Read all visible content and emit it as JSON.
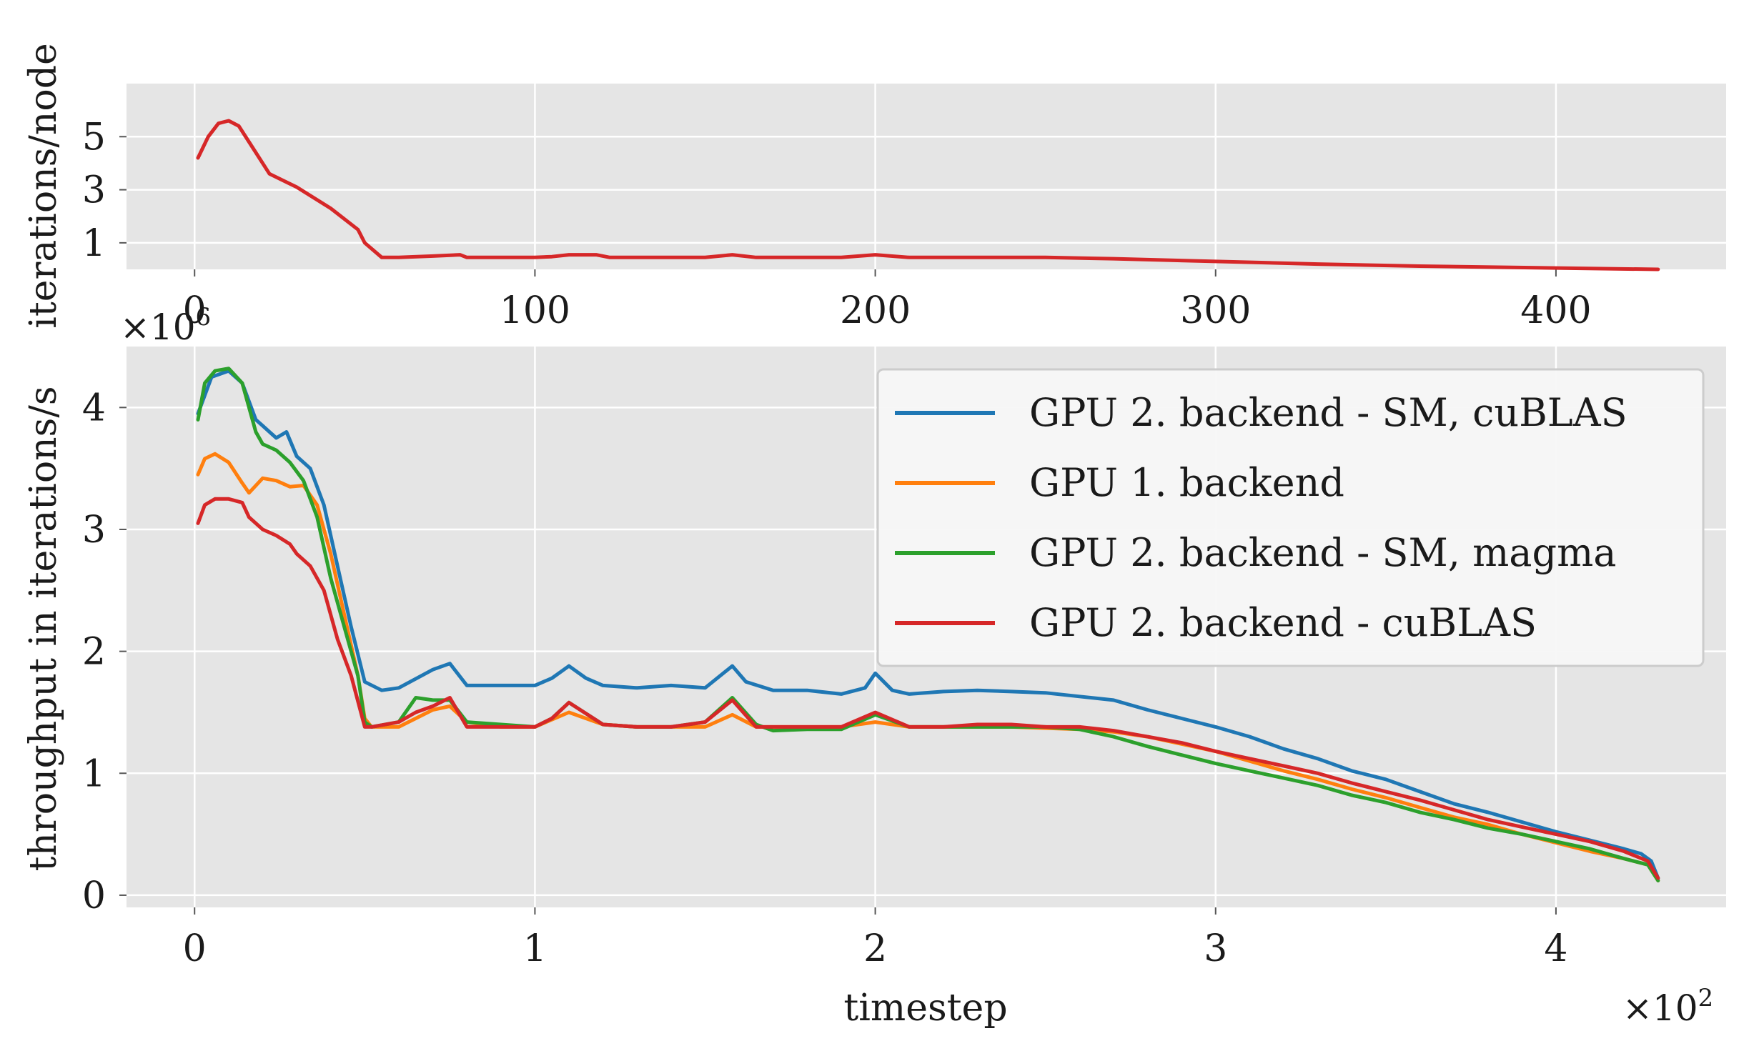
{
  "colors": {
    "background": "#e5e5e5",
    "grid": "#ffffff",
    "gpu2_sm_cublas": "#1f77b4",
    "gpu1": "#ff7f0e",
    "gpu2_sm_magma": "#2ca02c",
    "gpu2_cublas": "#d62728"
  },
  "chart_data": [
    {
      "type": "line",
      "ylabel": "iterations/node",
      "xlim": [
        -20,
        450
      ],
      "ylim": [
        0,
        7
      ],
      "xticks": [
        0,
        100,
        200,
        300,
        400
      ],
      "xtick_labels": [
        "0",
        "100",
        "200",
        "300",
        "400"
      ],
      "yticks": [
        1,
        3,
        5
      ],
      "ytick_labels": [
        "1",
        "3",
        "5"
      ],
      "grid": true,
      "series": [
        {
          "color_key": "gpu2_cublas",
          "x": [
            1,
            4,
            7,
            10,
            13,
            17,
            22,
            30,
            40,
            48,
            50,
            55,
            60,
            70,
            78,
            80,
            90,
            100,
            105,
            110,
            118,
            122,
            130,
            140,
            150,
            158,
            165,
            190,
            200,
            210,
            250,
            270,
            300,
            330,
            360,
            400,
            430
          ],
          "y": [
            4.2,
            5.0,
            5.5,
            5.6,
            5.4,
            4.6,
            3.6,
            3.1,
            2.3,
            1.5,
            1.0,
            0.45,
            0.45,
            0.5,
            0.55,
            0.45,
            0.45,
            0.45,
            0.48,
            0.55,
            0.55,
            0.45,
            0.45,
            0.45,
            0.45,
            0.55,
            0.45,
            0.45,
            0.55,
            0.45,
            0.45,
            0.4,
            0.3,
            0.2,
            0.12,
            0.05,
            0.0
          ]
        }
      ]
    },
    {
      "type": "line",
      "xlabel": "timestep",
      "ylabel": "throughput in iterations/s",
      "x_offset": "×10",
      "x_offset_exp": "2",
      "y_offset": "×10",
      "y_offset_exp": "6",
      "xlim": [
        -0.2,
        4.5
      ],
      "ylim": [
        -0.1,
        4.5
      ],
      "xticks": [
        0,
        1,
        2,
        3,
        4
      ],
      "xtick_labels": [
        "0",
        "1",
        "2",
        "3",
        "4"
      ],
      "yticks": [
        0,
        1,
        2,
        3,
        4
      ],
      "ytick_labels": [
        "0",
        "1",
        "2",
        "3",
        "4"
      ],
      "grid": true,
      "legend_position": "top-right",
      "series": [
        {
          "name": "GPU 2. backend - SM, cuBLAS",
          "color_key": "gpu2_sm_cublas",
          "x": [
            0.01,
            0.05,
            0.1,
            0.14,
            0.18,
            0.2,
            0.24,
            0.27,
            0.3,
            0.34,
            0.38,
            0.42,
            0.46,
            0.5,
            0.55,
            0.6,
            0.7,
            0.75,
            0.8,
            0.9,
            1.0,
            1.05,
            1.1,
            1.15,
            1.2,
            1.3,
            1.4,
            1.5,
            1.58,
            1.62,
            1.7,
            1.8,
            1.9,
            1.97,
            2.0,
            2.05,
            2.1,
            2.2,
            2.3,
            2.4,
            2.5,
            2.6,
            2.7,
            2.8,
            2.9,
            3.0,
            3.1,
            3.2,
            3.3,
            3.4,
            3.5,
            3.6,
            3.7,
            3.8,
            3.9,
            4.0,
            4.1,
            4.2,
            4.25,
            4.28,
            4.3
          ],
          "y": [
            3.95,
            4.25,
            4.3,
            4.2,
            3.9,
            3.85,
            3.75,
            3.8,
            3.6,
            3.5,
            3.2,
            2.7,
            2.2,
            1.75,
            1.68,
            1.7,
            1.85,
            1.9,
            1.72,
            1.72,
            1.72,
            1.78,
            1.88,
            1.78,
            1.72,
            1.7,
            1.72,
            1.7,
            1.88,
            1.75,
            1.68,
            1.68,
            1.65,
            1.7,
            1.82,
            1.68,
            1.65,
            1.67,
            1.68,
            1.67,
            1.66,
            1.63,
            1.6,
            1.52,
            1.45,
            1.38,
            1.3,
            1.2,
            1.12,
            1.02,
            0.95,
            0.85,
            0.75,
            0.68,
            0.6,
            0.52,
            0.45,
            0.38,
            0.34,
            0.28,
            0.14
          ]
        },
        {
          "name": "GPU 1. backend",
          "color_key": "gpu1",
          "x": [
            0.01,
            0.03,
            0.06,
            0.1,
            0.14,
            0.16,
            0.2,
            0.24,
            0.28,
            0.32,
            0.36,
            0.4,
            0.44,
            0.48,
            0.5,
            0.52,
            0.6,
            0.7,
            0.75,
            0.8,
            0.9,
            1.0,
            1.1,
            1.2,
            1.3,
            1.4,
            1.5,
            1.58,
            1.65,
            1.7,
            1.8,
            1.9,
            2.0,
            2.1,
            2.2,
            2.3,
            2.4,
            2.5,
            2.6,
            2.7,
            2.8,
            2.9,
            3.0,
            3.1,
            3.2,
            3.3,
            3.4,
            3.5,
            3.6,
            3.7,
            3.8,
            3.9,
            4.0,
            4.1,
            4.2,
            4.27,
            4.3
          ],
          "y": [
            3.45,
            3.58,
            3.62,
            3.55,
            3.38,
            3.3,
            3.42,
            3.4,
            3.35,
            3.36,
            3.2,
            2.8,
            2.3,
            1.8,
            1.45,
            1.38,
            1.38,
            1.52,
            1.55,
            1.42,
            1.38,
            1.38,
            1.5,
            1.4,
            1.38,
            1.38,
            1.38,
            1.48,
            1.38,
            1.38,
            1.38,
            1.38,
            1.42,
            1.38,
            1.38,
            1.38,
            1.38,
            1.37,
            1.36,
            1.34,
            1.3,
            1.24,
            1.18,
            1.1,
            1.02,
            0.95,
            0.87,
            0.8,
            0.72,
            0.64,
            0.58,
            0.5,
            0.43,
            0.36,
            0.3,
            0.25,
            0.12
          ]
        },
        {
          "name": "GPU 2. backend - SM, magma",
          "color_key": "gpu2_sm_magma",
          "x": [
            0.01,
            0.03,
            0.06,
            0.1,
            0.14,
            0.18,
            0.2,
            0.24,
            0.28,
            0.32,
            0.36,
            0.4,
            0.44,
            0.48,
            0.5,
            0.52,
            0.6,
            0.65,
            0.7,
            0.75,
            0.8,
            0.9,
            1.0,
            1.05,
            1.1,
            1.2,
            1.3,
            1.4,
            1.5,
            1.58,
            1.65,
            1.7,
            1.8,
            1.9,
            2.0,
            2.1,
            2.2,
            2.3,
            2.4,
            2.5,
            2.6,
            2.7,
            2.8,
            2.9,
            3.0,
            3.1,
            3.2,
            3.3,
            3.4,
            3.5,
            3.6,
            3.7,
            3.8,
            3.9,
            4.0,
            4.1,
            4.2,
            4.27,
            4.3
          ],
          "y": [
            3.9,
            4.2,
            4.3,
            4.32,
            4.2,
            3.8,
            3.7,
            3.65,
            3.55,
            3.4,
            3.1,
            2.6,
            2.2,
            1.8,
            1.42,
            1.38,
            1.42,
            1.62,
            1.6,
            1.6,
            1.42,
            1.4,
            1.38,
            1.45,
            1.58,
            1.4,
            1.38,
            1.38,
            1.42,
            1.62,
            1.4,
            1.35,
            1.36,
            1.36,
            1.48,
            1.38,
            1.38,
            1.38,
            1.38,
            1.38,
            1.36,
            1.3,
            1.22,
            1.15,
            1.08,
            1.02,
            0.96,
            0.9,
            0.82,
            0.76,
            0.68,
            0.62,
            0.55,
            0.5,
            0.44,
            0.38,
            0.3,
            0.25,
            0.12
          ]
        },
        {
          "name": "GPU 2. backend - cuBLAS",
          "color_key": "gpu2_cublas",
          "x": [
            0.01,
            0.03,
            0.06,
            0.1,
            0.14,
            0.16,
            0.2,
            0.24,
            0.28,
            0.3,
            0.34,
            0.38,
            0.42,
            0.46,
            0.5,
            0.52,
            0.6,
            0.65,
            0.7,
            0.75,
            0.8,
            0.9,
            1.0,
            1.05,
            1.1,
            1.2,
            1.3,
            1.4,
            1.5,
            1.58,
            1.65,
            1.7,
            1.8,
            1.9,
            2.0,
            2.1,
            2.2,
            2.3,
            2.4,
            2.5,
            2.6,
            2.7,
            2.8,
            2.9,
            3.0,
            3.1,
            3.2,
            3.3,
            3.4,
            3.5,
            3.6,
            3.7,
            3.8,
            3.9,
            4.0,
            4.1,
            4.2,
            4.27,
            4.3
          ],
          "y": [
            3.05,
            3.2,
            3.25,
            3.25,
            3.22,
            3.1,
            3.0,
            2.95,
            2.88,
            2.8,
            2.7,
            2.5,
            2.1,
            1.8,
            1.38,
            1.38,
            1.42,
            1.5,
            1.55,
            1.62,
            1.38,
            1.38,
            1.38,
            1.45,
            1.58,
            1.4,
            1.38,
            1.38,
            1.42,
            1.6,
            1.38,
            1.38,
            1.38,
            1.38,
            1.5,
            1.38,
            1.38,
            1.4,
            1.4,
            1.38,
            1.38,
            1.35,
            1.3,
            1.25,
            1.18,
            1.12,
            1.06,
            1.0,
            0.92,
            0.85,
            0.78,
            0.7,
            0.62,
            0.56,
            0.5,
            0.44,
            0.36,
            0.28,
            0.14
          ]
        }
      ]
    }
  ]
}
